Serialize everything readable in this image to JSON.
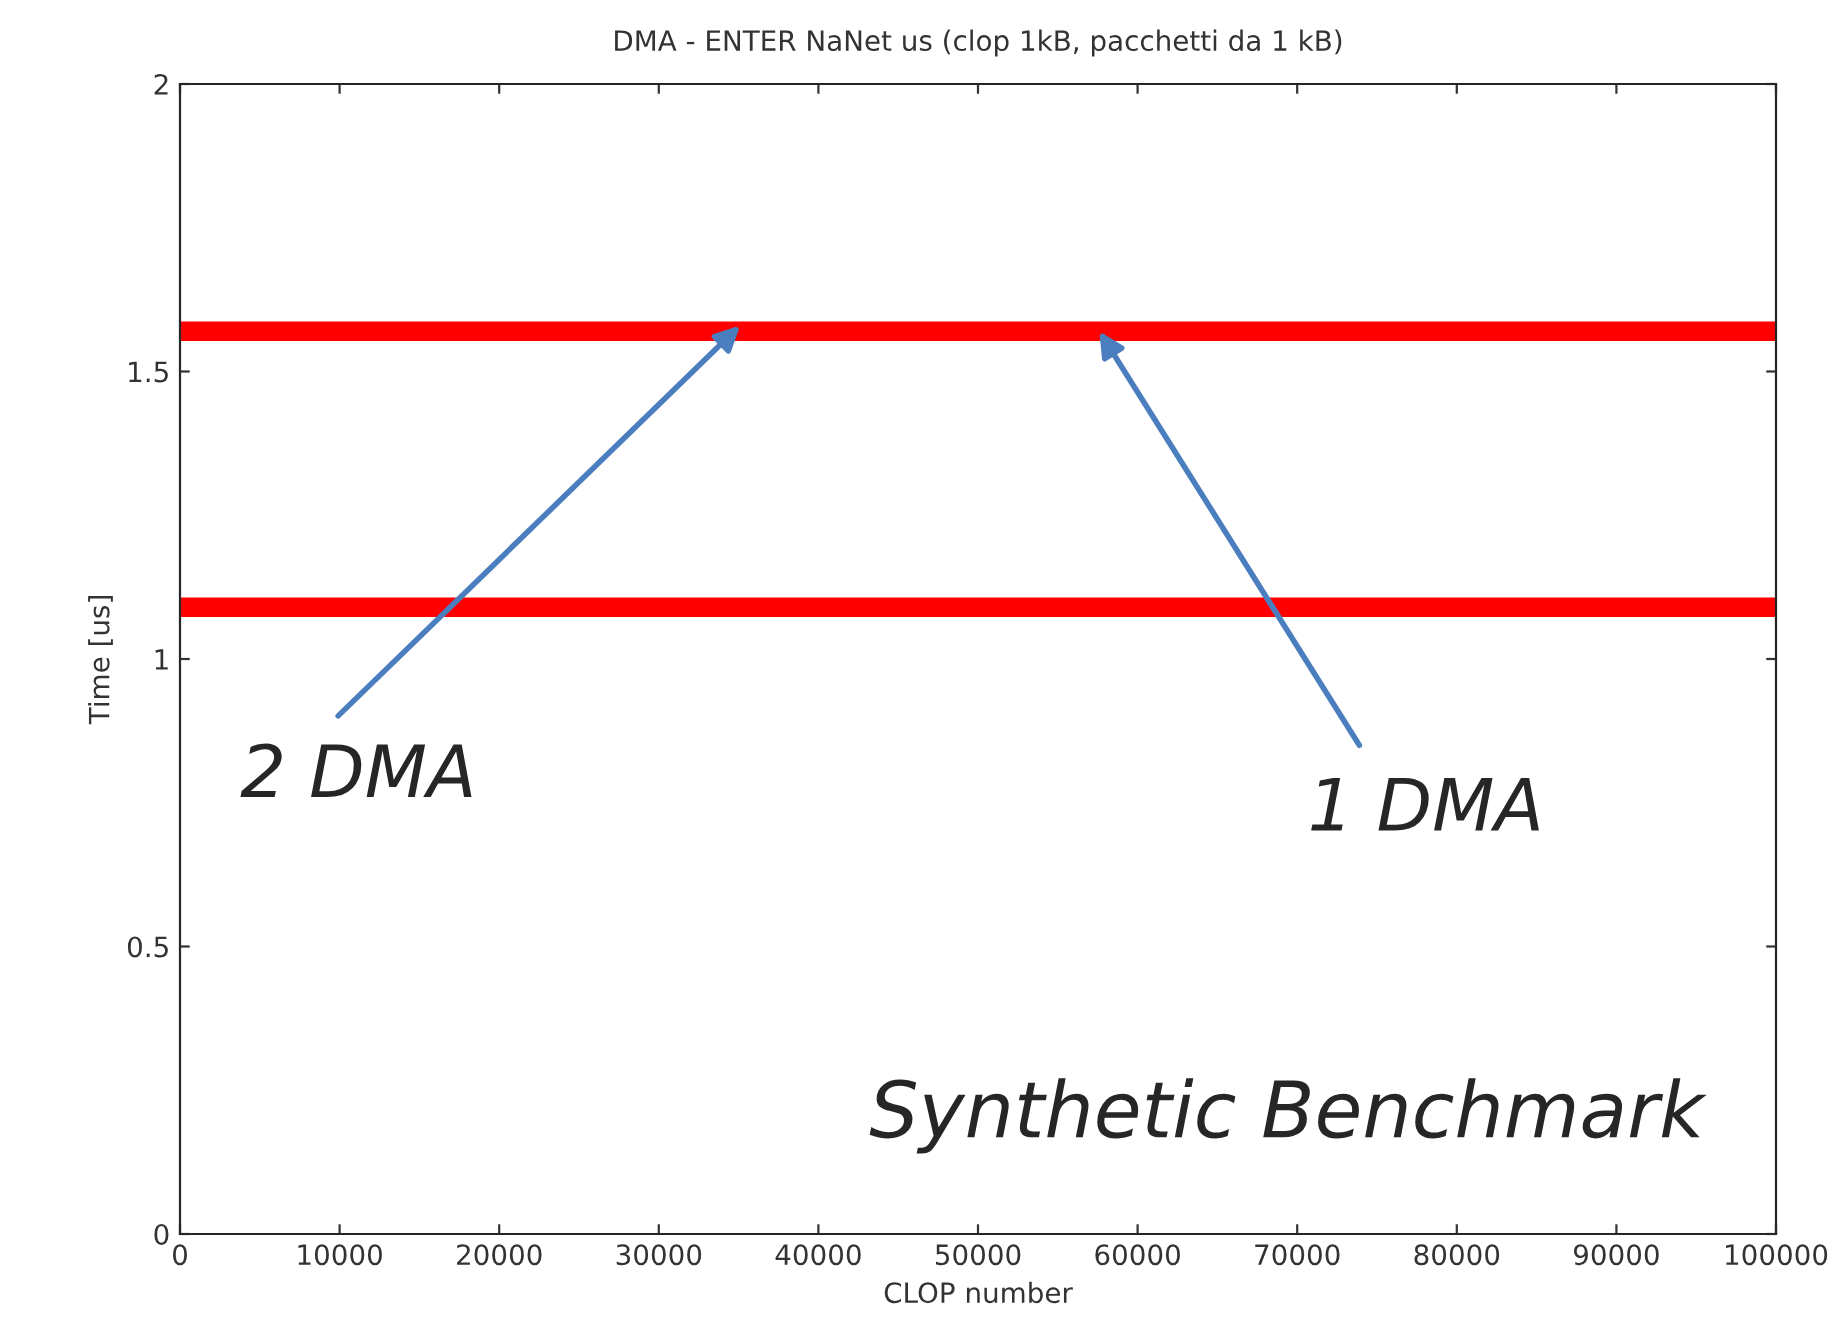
{
  "chart_data": {
    "type": "line",
    "title": "DMA - ENTER NaNet us (clop 1kB, pacchetti da 1 kB)",
    "xlabel": "CLOP number",
    "ylabel": "Time [us]",
    "x": [
      0,
      100000
    ],
    "series": [
      {
        "color": "#ff0000",
        "values": [
          1.57,
          1.57
        ]
      },
      {
        "color": "#ff0000",
        "values": [
          1.09,
          1.09
        ]
      }
    ],
    "xlim": [
      0,
      100000
    ],
    "xticks": [
      0,
      10000,
      20000,
      30000,
      40000,
      50000,
      60000,
      70000,
      80000,
      90000,
      100000
    ],
    "ylim": [
      0,
      2
    ],
    "yticks": [
      0,
      0.5,
      1,
      1.5,
      2
    ],
    "grid": false,
    "legend": false,
    "marker": "none",
    "line_style": "solid",
    "annotations": [
      {
        "text": "2 DMA",
        "x": 35100,
        "y": 1.58
      },
      {
        "text": "1 DMA",
        "x": 57600,
        "y": 1.57
      },
      "Synthetic Benchmark"
    ]
  }
}
